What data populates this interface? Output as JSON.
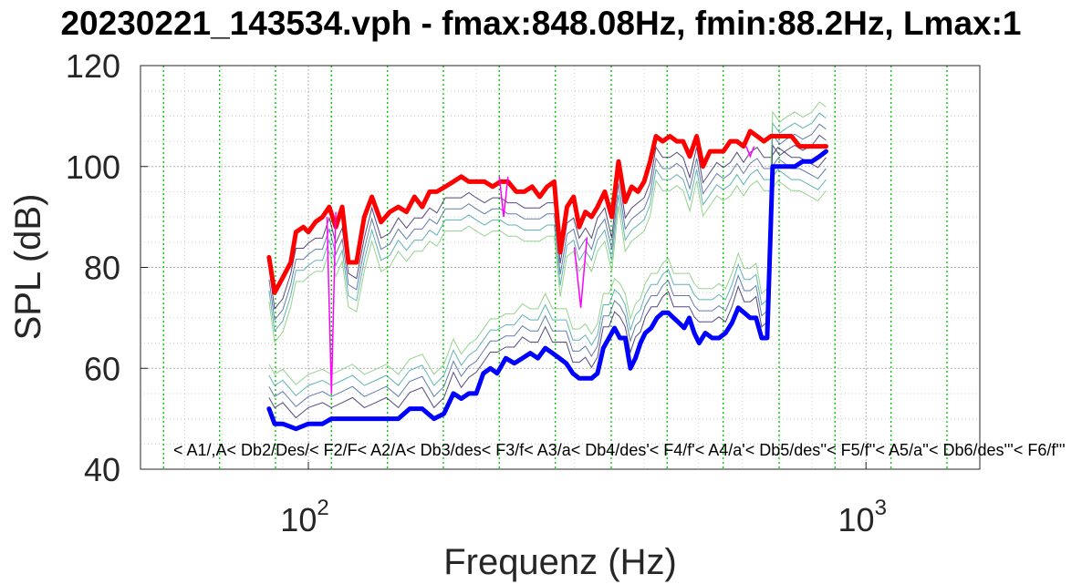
{
  "chart_data": {
    "type": "line",
    "title": "20230221_143534.vph - fmax:848.08Hz, fmin:88.2Hz, Lmax:1",
    "xlabel": "Frequenz (Hz)",
    "ylabel": "SPL (dB)",
    "x_scale": "log",
    "xlim": [
      50,
      1600
    ],
    "ylim": [
      40,
      120
    ],
    "y_ticks": [
      40,
      60,
      80,
      100,
      120
    ],
    "x_ticks": [
      {
        "base": "10",
        "exp": "2"
      },
      {
        "base": "10",
        "exp": "3"
      }
    ],
    "note_gridlines_hz": [
      55,
      69.3,
      87.3,
      110,
      138.6,
      174.6,
      220,
      277.2,
      349.2,
      440,
      554.4,
      698.5,
      880,
      1108.7,
      1396.9
    ],
    "note_labels_text": "< A1/,A< Db2/Des/< F2/F< A2/A< Db3/des< F3/f< A3/a< Db4/des'< F4/f'< A4/a'< Db5/des''< F5/f''< A5/a''< Db6/des'''< F6/f'''",
    "grid": "major and minor",
    "series": [
      {
        "color": "#ff0000",
        "points": [
          [
            85,
            82
          ],
          [
            87,
            75
          ],
          [
            90,
            78
          ],
          [
            93,
            81
          ],
          [
            95,
            87
          ],
          [
            98,
            88
          ],
          [
            100,
            87
          ],
          [
            103,
            89
          ],
          [
            106,
            90
          ],
          [
            109,
            92
          ],
          [
            112,
            88
          ],
          [
            115,
            92
          ],
          [
            118,
            81
          ],
          [
            122,
            81
          ],
          [
            126,
            90
          ],
          [
            130,
            94
          ],
          [
            135,
            89
          ],
          [
            140,
            91
          ],
          [
            145,
            92
          ],
          [
            150,
            91
          ],
          [
            155,
            94
          ],
          [
            160,
            92
          ],
          [
            165,
            95
          ],
          [
            170,
            95
          ],
          [
            176,
            96
          ],
          [
            182,
            97
          ],
          [
            188,
            98
          ],
          [
            194,
            97
          ],
          [
            200,
            97
          ],
          [
            207,
            97
          ],
          [
            214,
            96
          ],
          [
            221,
            97
          ],
          [
            228,
            97
          ],
          [
            236,
            95
          ],
          [
            244,
            95
          ],
          [
            252,
            96
          ],
          [
            260,
            94
          ],
          [
            268,
            96
          ],
          [
            276,
            97
          ],
          [
            283,
            83
          ],
          [
            291,
            92
          ],
          [
            299,
            94
          ],
          [
            306,
            88
          ],
          [
            314,
            91
          ],
          [
            322,
            90
          ],
          [
            330,
            92
          ],
          [
            340,
            95
          ],
          [
            350,
            90
          ],
          [
            360,
            101
          ],
          [
            370,
            93
          ],
          [
            380,
            96
          ],
          [
            390,
            95
          ],
          [
            400,
            97
          ],
          [
            410,
            101
          ],
          [
            420,
            106
          ],
          [
            432,
            105
          ],
          [
            445,
            106
          ],
          [
            458,
            105
          ],
          [
            470,
            105
          ],
          [
            483,
            102
          ],
          [
            497,
            106
          ],
          [
            510,
            100
          ],
          [
            525,
            103
          ],
          [
            540,
            103
          ],
          [
            555,
            103
          ],
          [
            571,
            105
          ],
          [
            587,
            105
          ],
          [
            603,
            104
          ],
          [
            620,
            107
          ],
          [
            638,
            106
          ],
          [
            656,
            105
          ],
          [
            675,
            106
          ],
          [
            695,
            106
          ],
          [
            715,
            106
          ],
          [
            735,
            106
          ],
          [
            760,
            104
          ],
          [
            790,
            104
          ],
          [
            820,
            104
          ],
          [
            848,
            104
          ]
        ]
      },
      {
        "color": "#0000ff",
        "points": [
          [
            85,
            52
          ],
          [
            87,
            49
          ],
          [
            90,
            49
          ],
          [
            95,
            48
          ],
          [
            100,
            49
          ],
          [
            106,
            49
          ],
          [
            110,
            50
          ],
          [
            115,
            50
          ],
          [
            120,
            50
          ],
          [
            126,
            50
          ],
          [
            132,
            50
          ],
          [
            138,
            50
          ],
          [
            145,
            50
          ],
          [
            152,
            52
          ],
          [
            160,
            52
          ],
          [
            168,
            50
          ],
          [
            175,
            51
          ],
          [
            182,
            55
          ],
          [
            188,
            54
          ],
          [
            194,
            55
          ],
          [
            200,
            55
          ],
          [
            206,
            59
          ],
          [
            212,
            60
          ],
          [
            218,
            59
          ],
          [
            226,
            62
          ],
          [
            234,
            61
          ],
          [
            242,
            62
          ],
          [
            250,
            63
          ],
          [
            258,
            62
          ],
          [
            266,
            64
          ],
          [
            274,
            63
          ],
          [
            282,
            62
          ],
          [
            290,
            61
          ],
          [
            298,
            59
          ],
          [
            306,
            58
          ],
          [
            314,
            58
          ],
          [
            322,
            58
          ],
          [
            330,
            59
          ],
          [
            338,
            64
          ],
          [
            346,
            66
          ],
          [
            354,
            68
          ],
          [
            362,
            66
          ],
          [
            370,
            66
          ],
          [
            378,
            60
          ],
          [
            386,
            62
          ],
          [
            394,
            65
          ],
          [
            402,
            67
          ],
          [
            412,
            68
          ],
          [
            422,
            70
          ],
          [
            432,
            71
          ],
          [
            442,
            71
          ],
          [
            452,
            70
          ],
          [
            462,
            69
          ],
          [
            472,
            68
          ],
          [
            482,
            70
          ],
          [
            492,
            67
          ],
          [
            502,
            65
          ],
          [
            515,
            67
          ],
          [
            530,
            66
          ],
          [
            545,
            66
          ],
          [
            560,
            67
          ],
          [
            575,
            69
          ],
          [
            590,
            72
          ],
          [
            605,
            71
          ],
          [
            620,
            70
          ],
          [
            635,
            70
          ],
          [
            650,
            66
          ],
          [
            665,
            66
          ],
          [
            680,
            100
          ],
          [
            700,
            100
          ],
          [
            720,
            100
          ],
          [
            745,
            100
          ],
          [
            770,
            101
          ],
          [
            800,
            101
          ],
          [
            825,
            102
          ],
          [
            848,
            103
          ]
        ]
      },
      {
        "color": "#ff00ff",
        "segments": [
          [
            [
              108,
              90
            ],
            [
              110,
              55
            ],
            [
              112,
              91
            ]
          ],
          [
            [
              220,
              98
            ],
            [
              224,
              90
            ],
            [
              228,
              98
            ]
          ],
          [
            [
              300,
              84
            ],
            [
              308,
              72
            ],
            [
              316,
              86
            ]
          ],
          [
            [
              610,
              104
            ],
            [
              620,
              102
            ],
            [
              630,
              104
            ]
          ]
        ]
      }
    ]
  }
}
